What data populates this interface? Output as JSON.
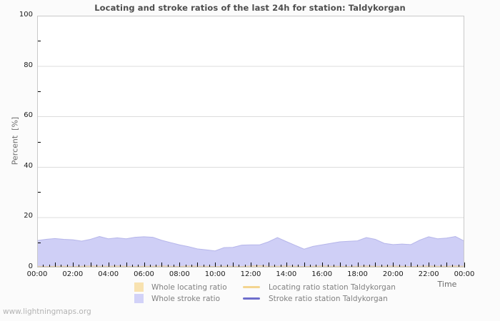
{
  "chart": {
    "title": "Locating and stroke ratios of the last 24h for station: Taldykorgan",
    "ylabel": "Percent  [%]",
    "xlabel": "Time",
    "watermark": "www.lightningmaps.org",
    "colors": {
      "background": "#fbfbfb",
      "plot_background": "#ffffff",
      "plot_border": "#c9c9c9",
      "gridline": "#dcdcdc",
      "tick": "#000000",
      "tick_label": "#1a1a1a",
      "title": "#4d4d4d",
      "axis_label": "#6b6b6b",
      "legend_text": "#808080",
      "watermark": "#b3b3b3"
    }
  },
  "chart_data": {
    "type": "area",
    "title": "Locating and stroke ratios of the last 24h for station: Taldykorgan",
    "xlabel": "Time",
    "ylabel": "Percent [%]",
    "ylim": [
      0,
      100
    ],
    "xlim_hours": [
      0,
      24
    ],
    "grid": "horizontal-major-only",
    "legend_position": "bottom",
    "x_tick_labels": [
      "00:00",
      "02:00",
      "04:00",
      "06:00",
      "08:00",
      "10:00",
      "12:00",
      "14:00",
      "16:00",
      "18:00",
      "20:00",
      "22:00",
      "00:00"
    ],
    "x_major_tick_every_hours": 1,
    "x_minor_tick_every_hours": 0.3333,
    "y_tick_labels": [
      0,
      20,
      40,
      60,
      80,
      100
    ],
    "y_minor_ticks": [
      10,
      30,
      50,
      70,
      90
    ],
    "sample_step_hours": 0.5,
    "series": [
      {
        "name": "Whole locating ratio",
        "type": "area",
        "fill": "#f0dcba",
        "edge": "#dfc6a2",
        "swatch": "#f8e2b0",
        "values": [
          0.5,
          0.4,
          0.5,
          0.5,
          0.4,
          0.5,
          0.6,
          0.5,
          0.5,
          0.6,
          0.5,
          0.4,
          0.5,
          0.5,
          0.6,
          0.5,
          0.4,
          0.6,
          0.5,
          0.5,
          0.4,
          0.5,
          0.5,
          0.4,
          0.6,
          0.7,
          0.5,
          0.5,
          0.6,
          0.5,
          0.4,
          0.5,
          0.6,
          0.5,
          0.5,
          0.4,
          0.5,
          0.6,
          0.5,
          0.5,
          0.6,
          0.5,
          0.4,
          0.5,
          0.6,
          0.5,
          0.5,
          0.6,
          0.5
        ]
      },
      {
        "name": "Whole stroke ratio",
        "type": "area",
        "fill": "#cfcff6",
        "edge": "#b6b6ea",
        "swatch": "#d2d2f8",
        "values": [
          10.7,
          11.2,
          11.5,
          11.2,
          11.0,
          10.5,
          11.2,
          12.3,
          11.4,
          11.8,
          11.4,
          12.0,
          12.2,
          12.0,
          10.8,
          9.9,
          9.0,
          8.3,
          7.4,
          7.0,
          6.6,
          7.9,
          8.0,
          8.9,
          9.0,
          9.0,
          10.2,
          11.9,
          10.3,
          8.8,
          7.3,
          8.4,
          9.0,
          9.6,
          10.2,
          10.4,
          10.6,
          11.9,
          11.2,
          9.6,
          9.1,
          9.3,
          9.1,
          10.9,
          12.2,
          11.4,
          11.7,
          12.3,
          10.5
        ]
      },
      {
        "name": "Locating ratio station Taldykorgan",
        "type": "line",
        "swatch": "#f3d590",
        "values": []
      },
      {
        "name": "Stroke ratio station Taldykorgan",
        "type": "line",
        "swatch": "#6e6ecc",
        "values": []
      }
    ],
    "legend_order": [
      0,
      2,
      1,
      3
    ]
  }
}
